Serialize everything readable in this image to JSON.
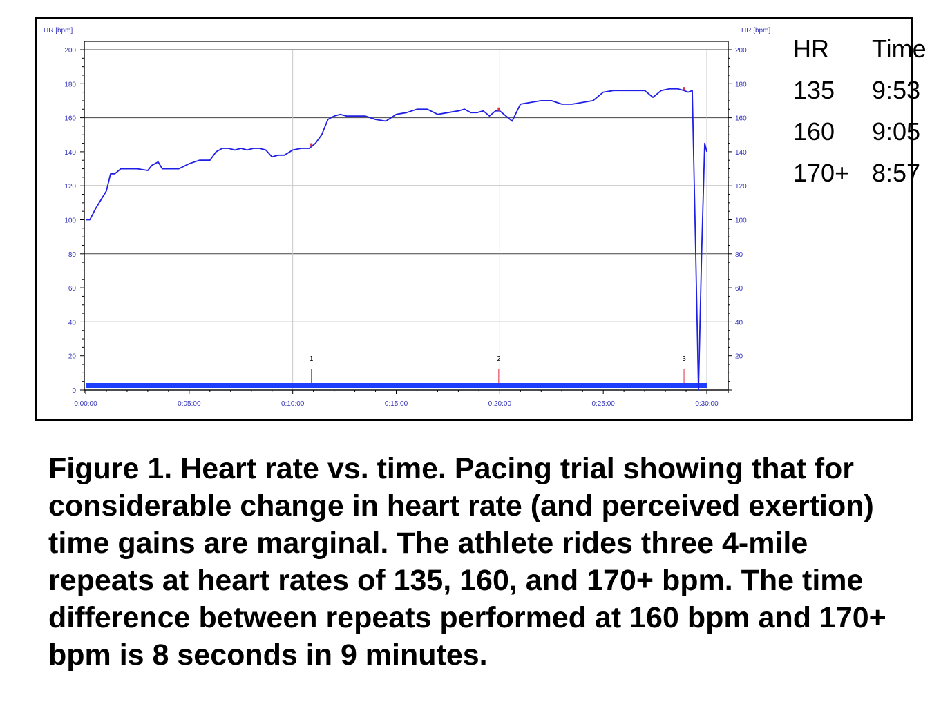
{
  "caption": "Figure 1. Heart rate vs. time. Pacing trial showing that for considerable change in heart rate (and perceived exertion) time gains are marginal. The athlete rides three 4-mile repeats at heart rates of 135, 160, and 170+ bpm. The time difference between repeats performed at 160 bpm and 170+ bpm is 8 seconds in 9 minutes.",
  "pace_table": {
    "headers": [
      "HR",
      "Time"
    ],
    "rows": [
      {
        "hr": "135",
        "time": "9:53"
      },
      {
        "hr": "160",
        "time": "9:05"
      },
      {
        "hr": "170+",
        "time": "8:57"
      }
    ]
  },
  "colors": {
    "series": "#1f1fe6",
    "axis_text": "#3333bb",
    "lap_marker": "#e03040",
    "moving_bar": "#1f3fff"
  },
  "chart_data": {
    "type": "line",
    "ylabel": "HR [bpm]",
    "ylabel_right": "HR [bpm]",
    "xlabel": "",
    "ylim": [
      0,
      200
    ],
    "xlim": [
      0,
      30
    ],
    "x_unit": "minutes",
    "y_ticks": [
      "0",
      "20",
      "40",
      "60",
      "80",
      "100",
      "120",
      "140",
      "160",
      "180",
      "200"
    ],
    "y_ticks_right": [
      "20",
      "40",
      "60",
      "80",
      "100",
      "120",
      "140",
      "160",
      "180",
      "200"
    ],
    "x_ticks": [
      "0:00:00",
      "0:05:00",
      "0:10:00",
      "0:15:00",
      "0:20:00",
      "0:25:00",
      "0:30:00"
    ],
    "grid": true,
    "laps": [
      {
        "label": "1",
        "x": 10.9
      },
      {
        "label": "2",
        "x": 19.95
      },
      {
        "label": "3",
        "x": 28.9
      }
    ],
    "series": [
      {
        "x": [
          0,
          0.2,
          0.5,
          0.8,
          1.0,
          1.2,
          1.4,
          1.7,
          2.0,
          2.5,
          3.0,
          3.2,
          3.5,
          3.7,
          4.0,
          4.5,
          5.0,
          5.5,
          6.0,
          6.3,
          6.6,
          6.9,
          7.2,
          7.5,
          7.8,
          8.1,
          8.4,
          8.7,
          9.0,
          9.3,
          9.6,
          10.0,
          10.4,
          10.8,
          11.1,
          11.4,
          11.7,
          12.0,
          12.3,
          12.6,
          13.0,
          13.5,
          14.0,
          14.5,
          15.0,
          15.5,
          16.0,
          16.5,
          17.0,
          17.5,
          18.0,
          18.3,
          18.6,
          18.9,
          19.2,
          19.5,
          19.8,
          20.0,
          20.3,
          20.6,
          21.0,
          21.5,
          22.0,
          22.5,
          23.0,
          23.5,
          24.0,
          24.5,
          25.0,
          25.5,
          26.0,
          26.5,
          27.0,
          27.4,
          27.8,
          28.2,
          28.6,
          28.9,
          29.1,
          29.3,
          29.45,
          29.6,
          29.75,
          29.9,
          30.0
        ],
        "y": [
          100,
          100,
          107,
          113,
          117,
          127,
          127,
          130,
          130,
          130,
          129,
          132,
          134,
          130,
          130,
          130,
          133,
          135,
          135,
          140,
          142,
          142,
          141,
          142,
          141,
          142,
          142,
          141,
          137,
          138,
          138,
          141,
          142,
          142,
          145,
          150,
          159,
          161,
          162,
          161,
          161,
          161,
          159,
          158,
          162,
          163,
          165,
          165,
          162,
          163,
          164,
          165,
          163,
          163,
          164,
          161,
          164,
          164,
          161,
          158,
          168,
          169,
          170,
          170,
          168,
          168,
          169,
          170,
          175,
          176,
          176,
          176,
          176,
          172,
          176,
          177,
          177,
          176,
          175,
          176,
          90,
          0,
          80,
          145,
          140
        ]
      }
    ]
  }
}
